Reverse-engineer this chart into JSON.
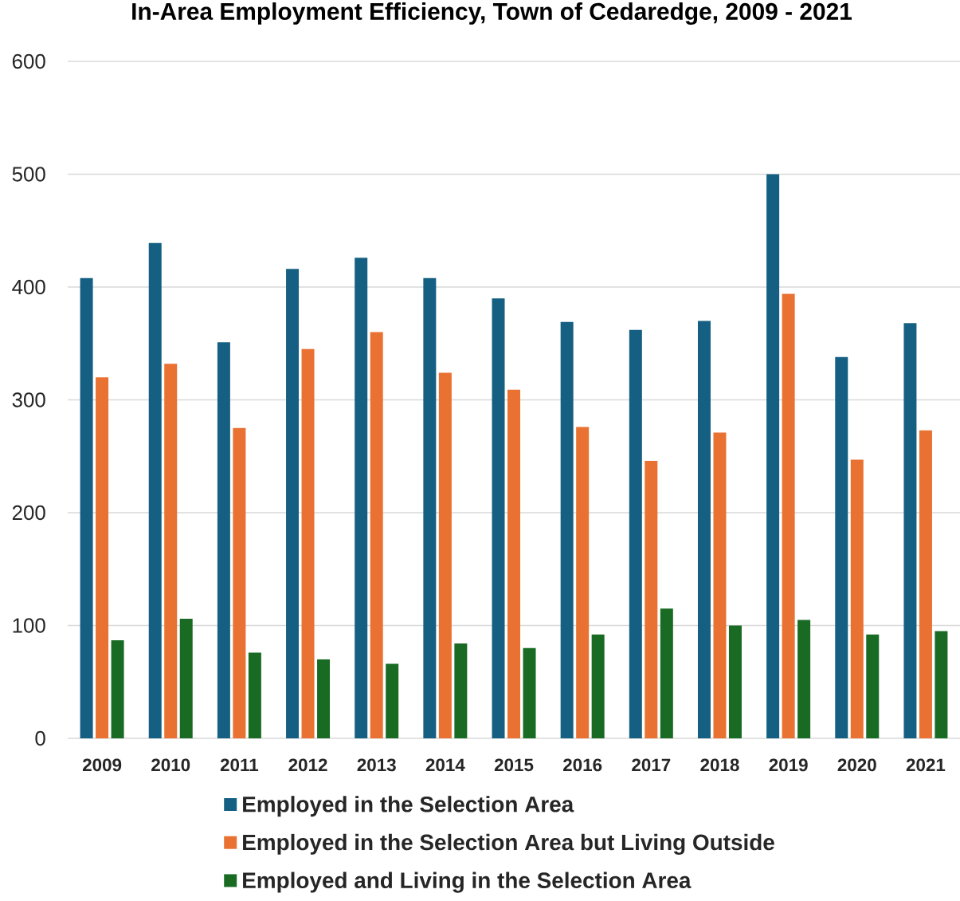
{
  "chart_data": {
    "type": "bar",
    "title": "In-Area Employment Efficiency, Town of Cedaredge, 2009 - 2021",
    "categories": [
      "2009",
      "2010",
      "2011",
      "2012",
      "2013",
      "2014",
      "2015",
      "2016",
      "2017",
      "2018",
      "2019",
      "2020",
      "2021"
    ],
    "series": [
      {
        "name": "Employed in the Selection Area",
        "color": "#156082",
        "values": [
          408,
          439,
          351,
          416,
          426,
          408,
          390,
          369,
          362,
          370,
          500,
          338,
          368
        ]
      },
      {
        "name": "Employed in the Selection Area but Living Outside",
        "color": "#e97132",
        "values": [
          320,
          332,
          275,
          345,
          360,
          324,
          309,
          276,
          246,
          271,
          394,
          247,
          273
        ]
      },
      {
        "name": "Employed and Living in the Selection Area",
        "color": "#196b24",
        "values": [
          87,
          106,
          76,
          70,
          66,
          84,
          80,
          92,
          115,
          100,
          105,
          92,
          95
        ]
      }
    ],
    "ylim": [
      0,
      600
    ],
    "yticks": [
      0,
      100,
      200,
      300,
      400,
      500,
      600
    ],
    "grid": "y",
    "legend": "bottom"
  }
}
